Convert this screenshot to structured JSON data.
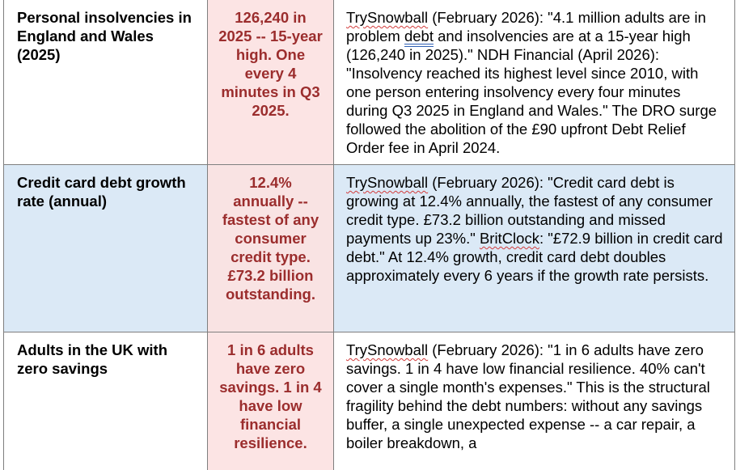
{
  "rows": [
    {
      "metric": "Personal insolvencies in England and Wales (2025)",
      "value": "126,240 in 2025 -- 15-year high. One every 4 minutes in Q3 2025.",
      "source_src1": "TrySnowball",
      "source_a": " (February 2026): \"4.1 million adults are in problem ",
      "source_grammar_word": "debt",
      "source_b": " and insolvencies are at a 15-year high (126,240 in 2025).\" NDH Financial (April 2026): \"Insolvency reached its highest level since 2010, with one person entering insolvency every four minutes during Q3 2025 in England and Wales.\" The DRO surge followed the abolition of the £90 upfront Debt Relief Order fee in April 2024."
    },
    {
      "metric": "Credit card debt growth rate (annual)",
      "value": "12.4% annually -- fastest of any consumer credit type. £73.2 billion outstanding.",
      "source_src1": "TrySnowball",
      "source_a": " (February 2026): \"Credit card debt is growing at 12.4% annually, the fastest of any consumer credit type. £73.2 billion outstanding and missed payments up 23%.\" ",
      "source_src2": "BritClock",
      "source_b": ": \"£72.9 billion in credit card debt.\" At 12.4% growth, credit card debt doubles approximately every 6 years if the growth rate persists."
    },
    {
      "metric": "Adults in the UK with zero savings",
      "value": "1 in 6 adults have zero savings. 1 in 4 have low financial resilience.",
      "source_src1": "TrySnowball",
      "source_a": " (February 2026): \"1 in 6 adults have zero savings. 1 in 4 have low financial resilience. 40% can't cover a single month's expenses.\" This is the structural fragility behind the debt numbers: without any savings buffer, a single unexpected expense -- a car repair, a boiler breakdown, a"
    }
  ],
  "colors": {
    "value_text": "#9b2d2d",
    "value_bg": "#fce4e4",
    "row_highlight_bg": "#dbe9f6",
    "border": "#7f7f7f"
  }
}
